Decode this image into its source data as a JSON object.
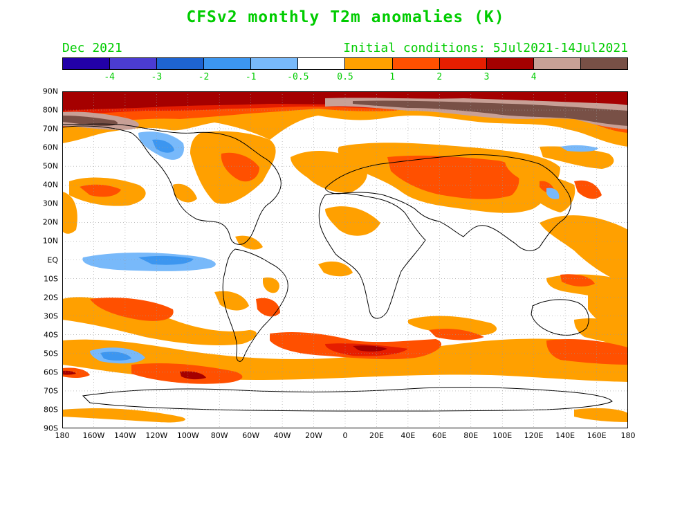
{
  "title": "CFSv2 monthly T2m anomalies (K)",
  "month_label": "Dec 2021",
  "initial_conditions": "Initial conditions: 5Jul2021-14Jul2021",
  "colorbar": {
    "colors": [
      "#2200a8",
      "#4b3cd2",
      "#1e64d2",
      "#3c96f0",
      "#78b9fa",
      "#ffffff",
      "#ffa000",
      "#ff5000",
      "#e61e00",
      "#a50000",
      "#c8a096",
      "#785046"
    ],
    "labels": [
      "-4",
      "-3",
      "-2",
      "-1",
      "-0.5",
      "0.5",
      "1",
      "2",
      "3",
      "4"
    ]
  },
  "lat_labels": [
    "90N",
    "80N",
    "70N",
    "60N",
    "50N",
    "40N",
    "30N",
    "20N",
    "10N",
    "EQ",
    "10S",
    "20S",
    "30S",
    "40S",
    "50S",
    "60S",
    "70S",
    "80S",
    "90S"
  ],
  "lon_labels": [
    "180",
    "160W",
    "140W",
    "120W",
    "100W",
    "80W",
    "60W",
    "40W",
    "20W",
    "0",
    "20E",
    "40E",
    "60E",
    "80E",
    "100E",
    "120E",
    "140E",
    "160E",
    "180"
  ]
}
